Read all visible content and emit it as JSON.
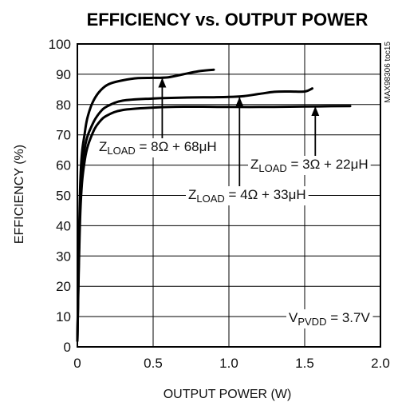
{
  "chart_data": {
    "type": "line",
    "title": "EFFICIENCY vs. OUTPUT POWER",
    "xlabel": "OUTPUT POWER  (W)",
    "ylabel": "EFFICIENCY (%)",
    "xlim": [
      0,
      2.0
    ],
    "ylim": [
      0,
      100
    ],
    "x_ticks": [
      "0",
      "0.5",
      "1.0",
      "1.5",
      "2.0"
    ],
    "y_ticks": [
      "0",
      "10",
      "20",
      "30",
      "40",
      "50",
      "60",
      "70",
      "80",
      "90",
      "100"
    ],
    "grid": true,
    "side_label": "MAX98306 toc15",
    "condition": {
      "pre": "V",
      "sub": "PVDD",
      "post": " = 3.7V"
    },
    "series": [
      {
        "label": {
          "pre": "Z",
          "sub": "LOAD",
          "post": " = 8Ω + 68μH"
        },
        "x": [
          0.0,
          0.02,
          0.05,
          0.08,
          0.12,
          0.17,
          0.22,
          0.3,
          0.4,
          0.5,
          0.6,
          0.7,
          0.8,
          0.9
        ],
        "y": [
          2,
          55,
          71,
          78,
          82.5,
          85.5,
          87,
          88,
          88.7,
          88.8,
          89,
          90,
          91,
          91.5
        ]
      },
      {
        "label": {
          "pre": "Z",
          "sub": "LOAD",
          "post": " = 4Ω + 33μH"
        },
        "x": [
          0.0,
          0.02,
          0.05,
          0.1,
          0.15,
          0.2,
          0.3,
          0.5,
          0.7,
          0.9,
          1.0,
          1.1,
          1.2,
          1.3,
          1.4,
          1.5,
          1.55
        ],
        "y": [
          2,
          50,
          66,
          73.5,
          77.5,
          79.5,
          81.3,
          82,
          82.3,
          82.4,
          82.5,
          82.8,
          83.5,
          84.2,
          84.3,
          84.3,
          85.3
        ]
      },
      {
        "label": {
          "pre": "Z",
          "sub": "LOAD",
          "post": " = 3Ω + 22μH"
        },
        "x": [
          0.0,
          0.02,
          0.05,
          0.1,
          0.15,
          0.2,
          0.3,
          0.5,
          0.7,
          1.0,
          1.2,
          1.4,
          1.6,
          1.8
        ],
        "y": [
          2,
          45,
          62,
          70.5,
          74.5,
          76.5,
          78.2,
          79,
          79.3,
          79.2,
          79.2,
          79.3,
          79.4,
          79.5
        ]
      }
    ]
  }
}
